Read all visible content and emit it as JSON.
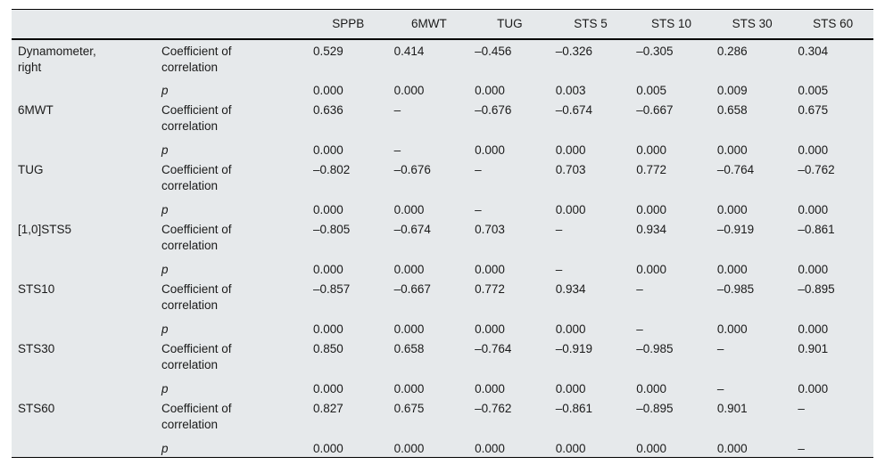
{
  "colors": {
    "table_background": "#e6e9eb",
    "rule_color": "#000000",
    "text_color": "#1a1a1a",
    "page_background": "#ffffff"
  },
  "table": {
    "columns": [
      "",
      "",
      "SPPB",
      "6MWT",
      "TUG",
      "STS 5",
      "STS 10",
      "STS 30",
      "STS 60"
    ],
    "coef_label": "Coefficient of correlation",
    "p_label": "p",
    "rows": [
      {
        "label": "Dynamometer, right",
        "coef": [
          "0.529",
          "0.414",
          "–0.456",
          "–0.326",
          "–0.305",
          "0.286",
          "0.304"
        ],
        "p": [
          "0.000",
          "0.000",
          "0.000",
          "0.003",
          "0.005",
          "0.009",
          "0.005"
        ]
      },
      {
        "label": "6MWT",
        "coef": [
          "0.636",
          "–",
          "–0.676",
          "–0.674",
          "–0.667",
          "0.658",
          "0.675"
        ],
        "p": [
          "0.000",
          "–",
          "0.000",
          "0.000",
          "0.000",
          "0.000",
          "0.000"
        ]
      },
      {
        "label": "TUG",
        "coef": [
          "–0.802",
          "–0.676",
          "–",
          "0.703",
          "0.772",
          "–0.764",
          "–0.762"
        ],
        "p": [
          "0.000",
          "0.000",
          "–",
          "0.000",
          "0.000",
          "0.000",
          "0.000"
        ]
      },
      {
        "label": "[1,0]STS5",
        "coef": [
          "–0.805",
          "–0.674",
          "0.703",
          "–",
          "0.934",
          "–0.919",
          "–0.861"
        ],
        "p": [
          "0.000",
          "0.000",
          "0.000",
          "–",
          "0.000",
          "0.000",
          "0.000"
        ]
      },
      {
        "label": "STS10",
        "coef": [
          "–0.857",
          "–0.667",
          "0.772",
          "0.934",
          "–",
          "–0.985",
          "–0.895"
        ],
        "p": [
          "0.000",
          "0.000",
          "0.000",
          "0.000",
          "–",
          "0.000",
          "0.000"
        ]
      },
      {
        "label": "STS30",
        "coef": [
          "0.850",
          "0.658",
          "–0.764",
          "–0.919",
          "–0.985",
          "–",
          "0.901"
        ],
        "p": [
          "0.000",
          "0.000",
          "0.000",
          "0.000",
          "0.000",
          "–",
          "0.000"
        ]
      },
      {
        "label": "STS60",
        "coef": [
          "0.827",
          "0.675",
          "–0.762",
          "–0.861",
          "–0.895",
          "0.901",
          "–"
        ],
        "p": [
          "0.000",
          "0.000",
          "0.000",
          "0.000",
          "0.000",
          "0.000",
          "–"
        ]
      }
    ]
  }
}
